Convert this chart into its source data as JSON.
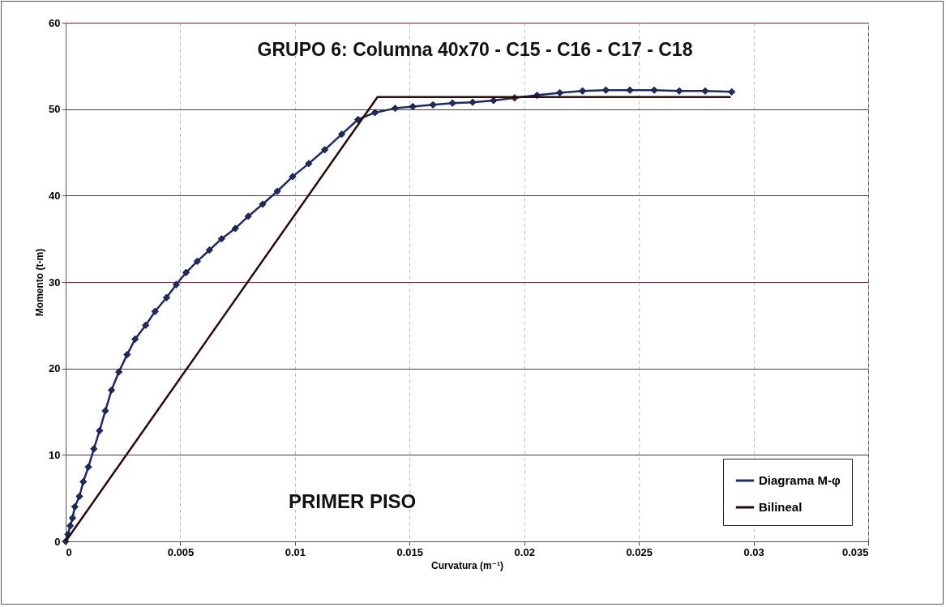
{
  "chart_data": {
    "type": "line",
    "title": "GRUPO 6: Columna 40x70 - C15 - C16 - C17 - C18",
    "xlabel": "Curvatura (m⁻¹)",
    "ylabel": "Momento (t-m)",
    "xlim": [
      0,
      0.035
    ],
    "xticks": [
      0,
      0.005,
      0.01,
      0.015,
      0.02,
      0.025,
      0.03,
      0.035
    ],
    "ylim": [
      0,
      60
    ],
    "yticks": [
      0,
      10,
      20,
      30,
      40,
      50,
      60
    ],
    "grid": true,
    "legend": "bottom right",
    "marker": "diamond",
    "line_style": "solid",
    "annotations": [
      "PRIMER PISO"
    ],
    "series": [
      {
        "name": "Diagrama M-φ",
        "color": "#1c2a6b",
        "x": [
          0,
          0.0001,
          0.0002,
          0.0003,
          0.0004,
          0.0006,
          0.00077,
          0.00099,
          0.00123,
          0.00148,
          0.00173,
          0.002,
          0.00232,
          0.00268,
          0.00303,
          0.00349,
          0.0039,
          0.0044,
          0.00482,
          0.00525,
          0.00574,
          0.00627,
          0.0068,
          0.0074,
          0.00796,
          0.00859,
          0.00923,
          0.0099,
          0.0106,
          0.0113,
          0.01204,
          0.01275,
          0.01349,
          0.01437,
          0.01514,
          0.01602,
          0.01687,
          0.01775,
          0.01866,
          0.01958,
          0.02056,
          0.02155,
          0.02254,
          0.02356,
          0.02461,
          0.02567,
          0.02676,
          0.02789,
          0.02905
        ],
        "values": [
          0,
          0.8,
          1.8,
          2.7,
          4,
          5.2,
          6.9,
          8.6,
          10.7,
          12.8,
          15.1,
          17.5,
          19.6,
          21.6,
          23.4,
          25,
          26.6,
          28.2,
          29.7,
          31.1,
          32.4,
          33.7,
          35,
          36.2,
          37.6,
          39,
          40.5,
          42.2,
          43.7,
          45.3,
          47.1,
          48.8,
          49.6,
          50.1,
          50.3,
          50.5,
          50.7,
          50.8,
          51,
          51.3,
          51.6,
          51.9,
          52.1,
          52.2,
          52.2,
          52.2,
          52.1,
          52.1,
          52
        ]
      },
      {
        "name": "Bilineal",
        "color": "#2b0a0a",
        "marker": "none",
        "x": [
          0,
          0.0136,
          0.029
        ],
        "values": [
          0,
          51.4,
          51.4
        ]
      }
    ]
  }
}
